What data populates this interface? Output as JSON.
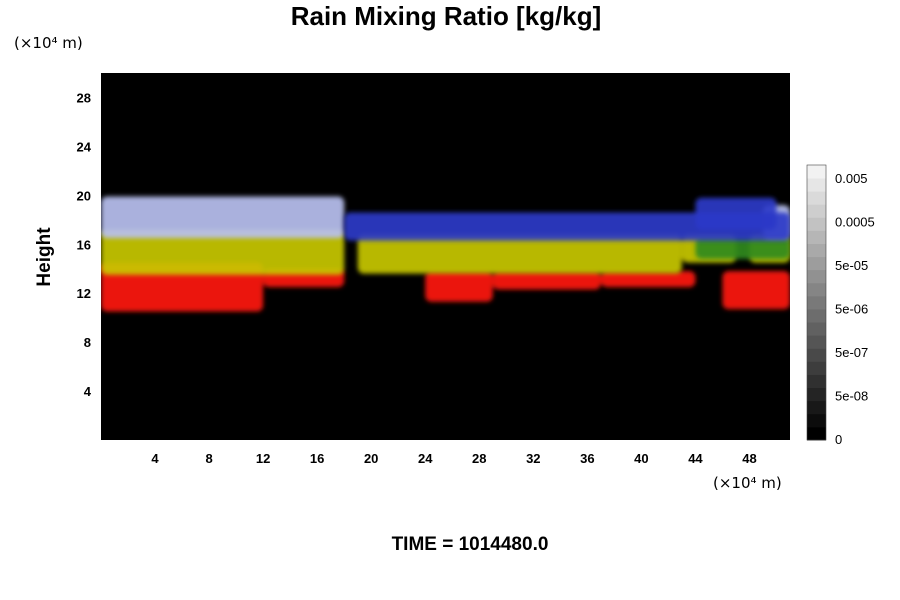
{
  "chart_data": {
    "type": "heatmap",
    "title": "Rain Mixing Ratio [kg/kg]",
    "ylabel": "Height",
    "x_unit": "(×10⁴ m)",
    "y_unit": "(×10⁴ m)",
    "xlim": [
      0,
      51
    ],
    "ylim": [
      0,
      30
    ],
    "x_ticks": [
      4,
      8,
      12,
      16,
      20,
      24,
      28,
      32,
      36,
      40,
      44,
      48
    ],
    "y_ticks": [
      4,
      8,
      12,
      16,
      20,
      24,
      28
    ],
    "background_color": "#000000",
    "layers": [
      {
        "color": "#ff1a10",
        "segments": [
          {
            "x0": 0,
            "x1": 12,
            "bottom": 10.5,
            "top": 14.5
          },
          {
            "x0": 12,
            "x1": 18,
            "bottom": 12.5,
            "top": 14.0
          },
          {
            "x0": 24,
            "x1": 29,
            "bottom": 11.3,
            "top": 13.8
          },
          {
            "x0": 29,
            "x1": 37,
            "bottom": 12.3,
            "top": 13.8
          },
          {
            "x0": 37,
            "x1": 44,
            "bottom": 12.5,
            "top": 13.8
          },
          {
            "x0": 46,
            "x1": 51,
            "bottom": 10.7,
            "top": 13.8
          }
        ]
      },
      {
        "color": "#c8c800",
        "segments": [
          {
            "x0": 0,
            "x1": 18,
            "bottom": 13.5,
            "top": 17.2
          },
          {
            "x0": 19,
            "x1": 43,
            "bottom": 13.6,
            "top": 16.8
          },
          {
            "x0": 43,
            "x1": 47,
            "bottom": 14.5,
            "top": 16.8
          },
          {
            "x0": 48,
            "x1": 51,
            "bottom": 14.5,
            "top": 16.8
          }
        ]
      },
      {
        "color": "#2f8a1e",
        "segments": [
          {
            "x0": 44,
            "x1": 51,
            "bottom": 14.8,
            "top": 16.6
          }
        ]
      },
      {
        "color": "#b8c0f0",
        "segments": [
          {
            "x0": 0,
            "x1": 18,
            "bottom": 16.5,
            "top": 19.9
          },
          {
            "x0": 49,
            "x1": 51,
            "bottom": 16.5,
            "top": 19.2
          }
        ]
      },
      {
        "color": "#2b39c8",
        "segments": [
          {
            "x0": 18,
            "x1": 51,
            "bottom": 16.3,
            "top": 18.6
          },
          {
            "x0": 44,
            "x1": 50,
            "bottom": 17.2,
            "top": 19.8
          }
        ]
      }
    ],
    "colorbar": {
      "labels": [
        "0.005",
        "0.0005",
        "5e-05",
        "5e-06",
        "5e-07",
        "5e-08",
        "0"
      ],
      "levels": 21,
      "color_low": "#000000",
      "color_high": "#f2f2f2"
    }
  },
  "footer": {
    "time_label": "TIME = 1014480.0"
  }
}
